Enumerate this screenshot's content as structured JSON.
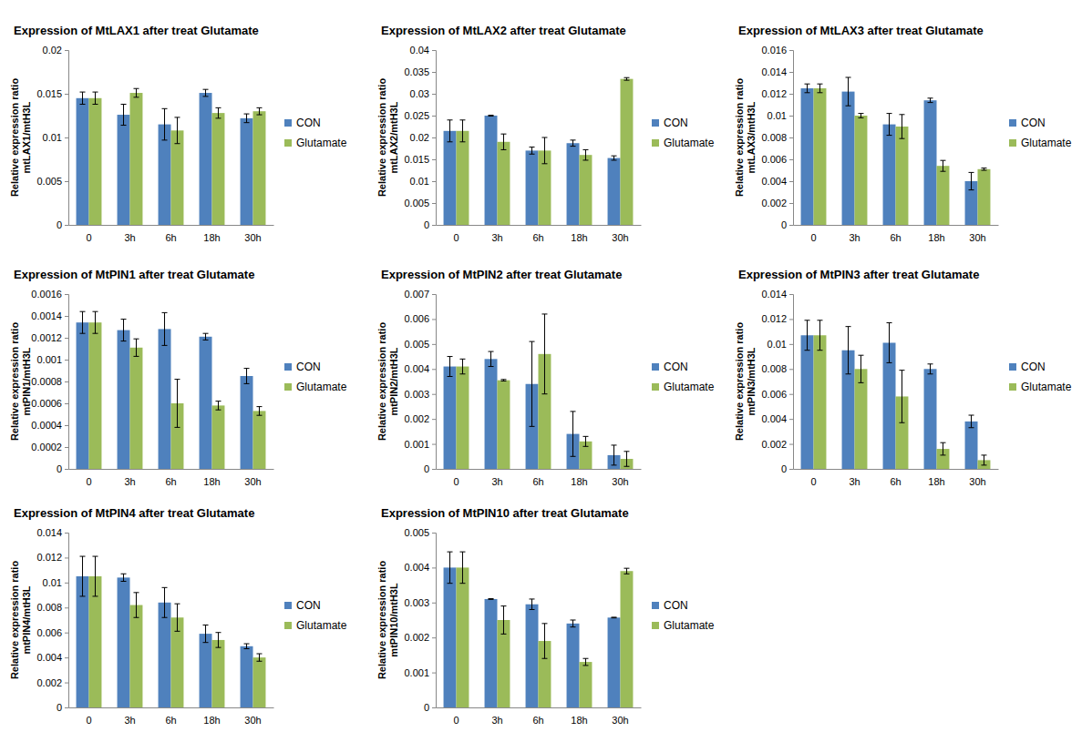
{
  "chart_data": [
    {
      "type": "bar",
      "title": "Expression of MtLAX1 after treat Glutamate",
      "y_label": [
        "Relative expression ratio",
        "mtLAX1/mtH3L"
      ],
      "categories": [
        "0",
        "3h",
        "6h",
        "18h",
        "30h"
      ],
      "series": [
        {
          "name": "CON",
          "color": "#4f81bd",
          "values": [
            0.0145,
            0.0126,
            0.0115,
            0.0151,
            0.0122
          ],
          "errors": [
            0.0007,
            0.0012,
            0.0018,
            0.0004,
            0.0005
          ]
        },
        {
          "name": "Glutamate",
          "color": "#9bbb59",
          "values": [
            0.0145,
            0.0151,
            0.0108,
            0.0128,
            0.013
          ],
          "errors": [
            0.0007,
            0.0005,
            0.0015,
            0.0006,
            0.0004
          ]
        }
      ],
      "ylim": [
        0,
        0.02
      ],
      "yticks": [
        0,
        0.005,
        0.01,
        0.015,
        0.02
      ],
      "grid": false,
      "legend": "right"
    },
    {
      "type": "bar",
      "title": "Expression of MtLAX2 after treat Glutamate",
      "y_label": [
        "Relative expression ratio",
        "mtLAX2/mtH3L"
      ],
      "categories": [
        "0",
        "3h",
        "6h",
        "18h",
        "30h"
      ],
      "series": [
        {
          "name": "CON",
          "color": "#4f81bd",
          "values": [
            0.0215,
            0.025,
            0.017,
            0.0187,
            0.0153
          ],
          "errors": [
            0.0025,
            0.0001,
            0.0008,
            0.0007,
            0.0005
          ]
        },
        {
          "name": "Glutamate",
          "color": "#9bbb59",
          "values": [
            0.0215,
            0.019,
            0.017,
            0.016,
            0.0334
          ],
          "errors": [
            0.0025,
            0.0018,
            0.003,
            0.0012,
            0.0003
          ]
        }
      ],
      "ylim": [
        0,
        0.04
      ],
      "yticks": [
        0,
        0.005,
        0.01,
        0.015,
        0.02,
        0.025,
        0.03,
        0.035,
        0.04
      ],
      "grid": false,
      "legend": "right"
    },
    {
      "type": "bar",
      "title": "Expression of MtLAX3 after treat Glutamate",
      "y_label": [
        "Relative expression ratio",
        "mtLAX3/mtH3L"
      ],
      "categories": [
        "0",
        "3h",
        "6h",
        "18h",
        "30h"
      ],
      "series": [
        {
          "name": "CON",
          "color": "#4f81bd",
          "values": [
            0.0125,
            0.0122,
            0.0092,
            0.0114,
            0.004
          ],
          "errors": [
            0.0004,
            0.0013,
            0.001,
            0.0002,
            0.0008
          ]
        },
        {
          "name": "Glutamate",
          "color": "#9bbb59",
          "values": [
            0.0125,
            0.01,
            0.009,
            0.0054,
            0.0051
          ],
          "errors": [
            0.0004,
            0.0002,
            0.0011,
            0.0005,
            0.0001
          ]
        }
      ],
      "ylim": [
        0,
        0.016
      ],
      "yticks": [
        0,
        0.002,
        0.004,
        0.006,
        0.008,
        0.01,
        0.012,
        0.014,
        0.016
      ],
      "grid": false,
      "legend": "right"
    },
    {
      "type": "bar",
      "title": "Expression of MtPIN1 after treat Glutamate",
      "y_label": [
        "Relative expression ratio",
        "mtPIN1/mtH3L"
      ],
      "categories": [
        "0",
        "3h",
        "6h",
        "18h",
        "30h"
      ],
      "series": [
        {
          "name": "CON",
          "color": "#4f81bd",
          "values": [
            0.00134,
            0.00127,
            0.00128,
            0.00121,
            0.00085
          ],
          "errors": [
            0.0001,
            0.0001,
            0.00015,
            3e-05,
            7e-05
          ]
        },
        {
          "name": "Glutamate",
          "color": "#9bbb59",
          "values": [
            0.00134,
            0.00111,
            0.0006,
            0.00058,
            0.00053
          ],
          "errors": [
            0.0001,
            8e-05,
            0.00022,
            4e-05,
            4e-05
          ]
        }
      ],
      "ylim": [
        0,
        0.0016
      ],
      "yticks": [
        0,
        0.0002,
        0.0004,
        0.0006,
        0.0008,
        0.001,
        0.0012,
        0.0014,
        0.0016
      ],
      "grid": false,
      "legend": "right"
    },
    {
      "type": "bar",
      "title": "Expression of MtPIN2 after treat Glutamate",
      "y_label": [
        "Relative expression ratio",
        "mtPIN2/mtH3L"
      ],
      "categories": [
        "0",
        "3h",
        "6h",
        "18h",
        "30h"
      ],
      "series": [
        {
          "name": "CON",
          "color": "#4f81bd",
          "values": [
            0.0041,
            0.0044,
            0.0034,
            0.0014,
            0.00055
          ],
          "errors": [
            0.0004,
            0.0003,
            0.0017,
            0.0009,
            0.0004
          ]
        },
        {
          "name": "Glutamate",
          "color": "#9bbb59",
          "values": [
            0.0041,
            0.00355,
            0.0046,
            0.0011,
            0.0004
          ],
          "errors": [
            0.0003,
            3e-05,
            0.0016,
            0.0002,
            0.0003
          ]
        }
      ],
      "ylim": [
        0,
        0.007
      ],
      "yticks": [
        0,
        0.001,
        0.002,
        0.003,
        0.004,
        0.005,
        0.006,
        0.007
      ],
      "grid": false,
      "legend": "right"
    },
    {
      "type": "bar",
      "title": "Expression of MtPIN3 after treat Glutamate",
      "y_label": [
        "Relative expression ratio",
        "mtPIN3/mtH3L"
      ],
      "categories": [
        "0",
        "3h",
        "6h",
        "18h",
        "30h"
      ],
      "series": [
        {
          "name": "CON",
          "color": "#4f81bd",
          "values": [
            0.0107,
            0.0095,
            0.0101,
            0.008,
            0.0038
          ],
          "errors": [
            0.0012,
            0.0019,
            0.0016,
            0.0004,
            0.0005
          ]
        },
        {
          "name": "Glutamate",
          "color": "#9bbb59",
          "values": [
            0.0107,
            0.008,
            0.0058,
            0.0016,
            0.0007
          ],
          "errors": [
            0.0012,
            0.0011,
            0.0021,
            0.0005,
            0.0004
          ]
        }
      ],
      "ylim": [
        0,
        0.014
      ],
      "yticks": [
        0,
        0.002,
        0.004,
        0.006,
        0.008,
        0.01,
        0.012,
        0.014
      ],
      "grid": false,
      "legend": "right"
    },
    {
      "type": "bar",
      "title": "Expression of MtPIN4 after treat Glutamate",
      "y_label": [
        "Relative expression ratio",
        "mtPIN4/mtH3L"
      ],
      "categories": [
        "0",
        "3h",
        "6h",
        "18h",
        "30h"
      ],
      "series": [
        {
          "name": "CON",
          "color": "#4f81bd",
          "values": [
            0.0105,
            0.0104,
            0.0084,
            0.0059,
            0.0049
          ],
          "errors": [
            0.0016,
            0.0003,
            0.0012,
            0.0007,
            0.0002
          ]
        },
        {
          "name": "Glutamate",
          "color": "#9bbb59",
          "values": [
            0.0105,
            0.0082,
            0.0072,
            0.0054,
            0.004
          ],
          "errors": [
            0.0016,
            0.001,
            0.0011,
            0.0006,
            0.0003
          ]
        }
      ],
      "ylim": [
        0,
        0.014
      ],
      "yticks": [
        0,
        0.002,
        0.004,
        0.006,
        0.008,
        0.01,
        0.012,
        0.014
      ],
      "grid": false,
      "legend": "right"
    },
    {
      "type": "bar",
      "title": "Expression of MtPIN10 after treat Glutamate",
      "y_label": [
        "Relative expression ratio",
        "mtPIN10/mtH3L"
      ],
      "categories": [
        "0",
        "3h",
        "6h",
        "18h",
        "30h"
      ],
      "series": [
        {
          "name": "CON",
          "color": "#4f81bd",
          "values": [
            0.004,
            0.0031,
            0.00295,
            0.0024,
            0.00257
          ],
          "errors": [
            0.00045,
            1e-05,
            0.00015,
            0.0001,
            1e-05
          ]
        },
        {
          "name": "Glutamate",
          "color": "#9bbb59",
          "values": [
            0.004,
            0.0025,
            0.0019,
            0.0013,
            0.0039
          ],
          "errors": [
            0.00045,
            0.0004,
            0.0005,
            0.0001,
            8e-05
          ]
        }
      ],
      "ylim": [
        0,
        0.005
      ],
      "yticks": [
        0,
        0.001,
        0.002,
        0.003,
        0.004,
        0.005
      ],
      "grid": false,
      "legend": "right"
    }
  ]
}
